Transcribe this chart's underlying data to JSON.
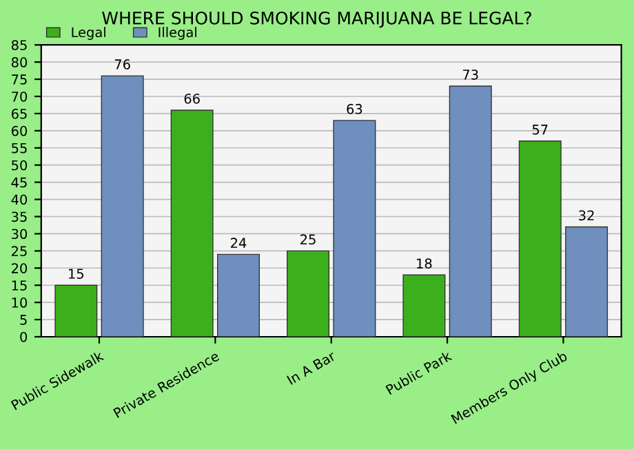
{
  "chart_data": {
    "type": "bar",
    "title": "WHERE SHOULD SMOKING MARIJUANA BE LEGAL?",
    "categories": [
      "Public Sidewalk",
      "Private Residence",
      "In A Bar",
      "Public Park",
      "Members Only Club"
    ],
    "series": [
      {
        "name": "Legal",
        "color": "#3cb01c",
        "values": [
          15,
          66,
          25,
          18,
          57
        ]
      },
      {
        "name": "Illegal",
        "color": "#6f8fbf",
        "values": [
          76,
          24,
          63,
          73,
          32
        ]
      }
    ],
    "ylim": [
      0,
      85
    ],
    "yticks": [
      0,
      5,
      10,
      15,
      20,
      25,
      30,
      35,
      40,
      45,
      50,
      55,
      60,
      65,
      70,
      75,
      80,
      85
    ],
    "grid": "y",
    "legend": "top left",
    "data_labels": true
  }
}
